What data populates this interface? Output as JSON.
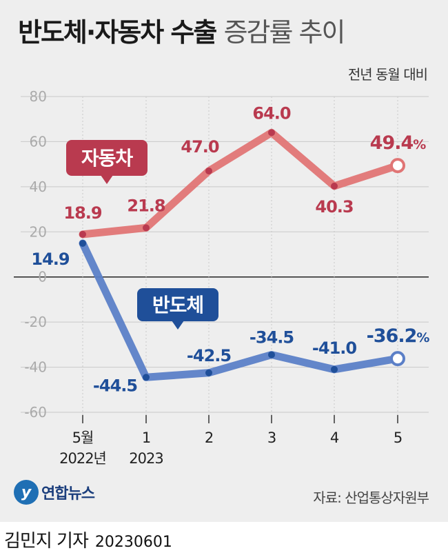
{
  "header": {
    "title_bold": "반도체·자동차 수출",
    "title_light": "증감률 추이",
    "unit_note": "전년 동월 대비"
  },
  "source": "자료: 산업통상자원부",
  "logo": {
    "mark": "y",
    "text": "연합뉴스"
  },
  "footer": {
    "author": "김민지 기자",
    "date": "20230601"
  },
  "colors": {
    "auto": "#e07575",
    "auto_dark": "#b93a4f",
    "semi": "#5b7fc7",
    "semi_dark": "#1f4f99",
    "grid": "#c8c8c8",
    "axis_text": "#aaaaaa"
  },
  "chart_data": {
    "type": "line",
    "categories": [
      "5월\n2022년",
      "1\n2023",
      "2",
      "3",
      "4",
      "5"
    ],
    "y_ticks": [
      80,
      60,
      40,
      20,
      0,
      -20,
      -40,
      -60
    ],
    "ylim": [
      -60,
      80
    ],
    "grid": true,
    "series": [
      {
        "name": "자동차",
        "values": [
          18.9,
          21.8,
          47.0,
          64.0,
          40.3,
          49.4
        ],
        "labels": [
          "18.9",
          "21.8",
          "47.0",
          "64.0",
          "40.3",
          "49.4"
        ],
        "last_suffix": "%"
      },
      {
        "name": "반도체",
        "values": [
          14.9,
          -44.5,
          -42.5,
          -34.5,
          -41.0,
          -36.2
        ],
        "labels": [
          "14.9",
          "-44.5",
          "-42.5",
          "-34.5",
          "-41.0",
          "-36.2"
        ],
        "last_suffix": "%"
      }
    ]
  }
}
